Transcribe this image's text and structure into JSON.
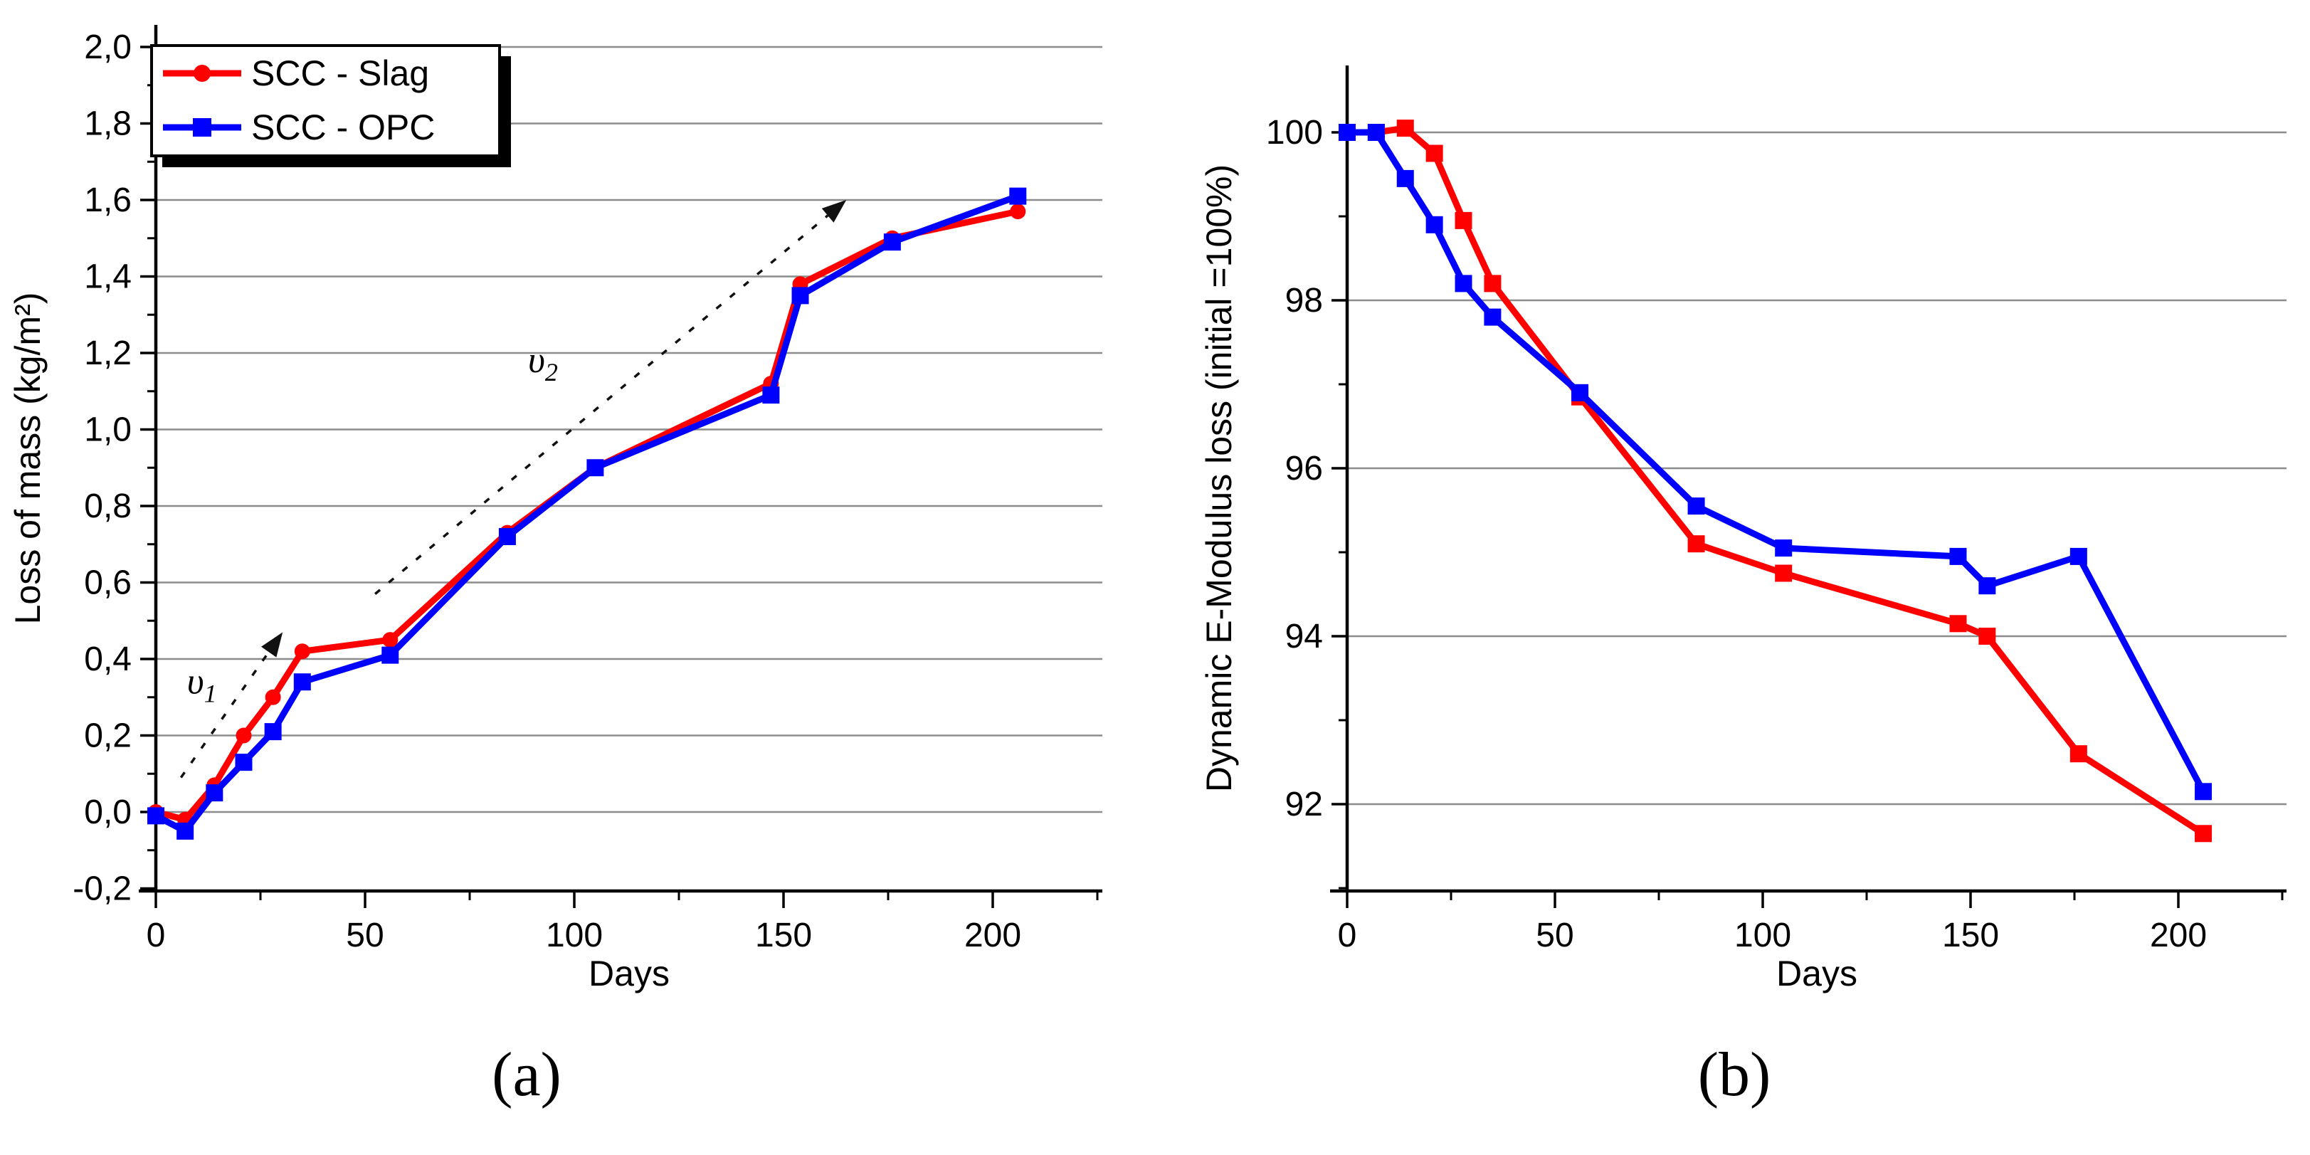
{
  "figure": {
    "background": "#ffffff",
    "axis_color": "#000000",
    "grid_color": "#8c8c8c",
    "annotation_color": "#111111"
  },
  "chart_data": [
    {
      "id": "a",
      "type": "line",
      "caption": "(a)",
      "xlabel": "Days",
      "ylabel": "Loss of mass (kg/m²)",
      "xlim": [
        0,
        226
      ],
      "ylim": [
        -0.21,
        2.06
      ],
      "grid": "horizontal-major",
      "xticks": {
        "values": [
          0,
          50,
          100,
          150,
          200
        ],
        "labels": [
          "0",
          "50",
          "100",
          "150",
          "200"
        ]
      },
      "yticks": {
        "values": [
          2.0,
          1.8,
          1.6,
          1.4,
          1.2,
          1.0,
          0.8,
          0.6,
          0.4,
          0.2,
          0.0,
          -0.2
        ],
        "labels": [
          "2,0",
          "1,8",
          "1,6",
          "1,4",
          "1,2",
          "1,0",
          "0,8",
          "0,6",
          "0,4",
          "0,2",
          "0,0",
          "-0,2"
        ]
      },
      "x": [
        0,
        7,
        14,
        21,
        28,
        35,
        56,
        84,
        105,
        147,
        154,
        176,
        206
      ],
      "series": [
        {
          "name": "SCC - Slag",
          "color": "#ff0000",
          "marker": "circle",
          "values": [
            0.0,
            -0.02,
            0.07,
            0.2,
            0.3,
            0.42,
            0.45,
            0.73,
            0.9,
            1.12,
            1.38,
            1.5,
            1.57
          ]
        },
        {
          "name": "SCC - OPC",
          "color": "#0000ff",
          "marker": "square",
          "values": [
            -0.01,
            -0.05,
            0.05,
            0.13,
            0.21,
            0.34,
            0.41,
            0.72,
            0.9,
            1.09,
            1.35,
            1.49,
            1.61
          ]
        }
      ],
      "legend": {
        "position": "top-left",
        "items": [
          {
            "label": "SCC - Slag",
            "color": "#ff0000",
            "marker": "circle"
          },
          {
            "label": "SCC - OPC",
            "color": "#0000ff",
            "marker": "square"
          }
        ]
      },
      "annotations": [
        {
          "type": "arrow",
          "from": [
            6,
            0.09
          ],
          "to": [
            30.3,
            0.47
          ]
        },
        {
          "type": "arrow",
          "from": [
            52.4,
            0.57
          ],
          "to": [
            165,
            1.6
          ]
        },
        {
          "type": "label",
          "text": "υ",
          "sub": "1",
          "at": [
            11,
            0.31
          ]
        },
        {
          "type": "label",
          "text": "υ",
          "sub": "2",
          "at": [
            92.5,
            1.15
          ]
        }
      ]
    },
    {
      "id": "b",
      "type": "line",
      "caption": "(b)",
      "xlabel": "Days",
      "ylabel": "Dynamic E-Modulus loss (initial =100%)",
      "xlim": [
        0,
        226
      ],
      "ylim": [
        90.95,
        100.8
      ],
      "grid": "horizontal-major",
      "xticks": {
        "values": [
          0,
          50,
          100,
          150,
          200
        ],
        "labels": [
          "0",
          "50",
          "100",
          "150",
          "200"
        ]
      },
      "yticks": {
        "values": [
          100,
          98,
          96,
          94,
          92
        ],
        "labels": [
          "100",
          "98",
          "96",
          "94",
          "92"
        ]
      },
      "x": [
        0,
        7,
        14,
        21,
        28,
        35,
        56,
        84,
        105,
        147,
        154,
        176,
        206
      ],
      "series": [
        {
          "name": "SCC - Slag",
          "color": "#ff0000",
          "marker": "square",
          "values": [
            100.0,
            100.0,
            100.05,
            99.75,
            98.95,
            98.2,
            96.85,
            95.1,
            94.75,
            94.15,
            94.0,
            92.6,
            91.65
          ]
        },
        {
          "name": "SCC - OPC",
          "color": "#0000ff",
          "marker": "square",
          "values": [
            100.0,
            100.0,
            99.45,
            98.9,
            98.2,
            97.8,
            96.9,
            95.55,
            95.05,
            94.95,
            94.6,
            94.95,
            92.15
          ]
        }
      ],
      "legend": null,
      "annotations": []
    }
  ]
}
